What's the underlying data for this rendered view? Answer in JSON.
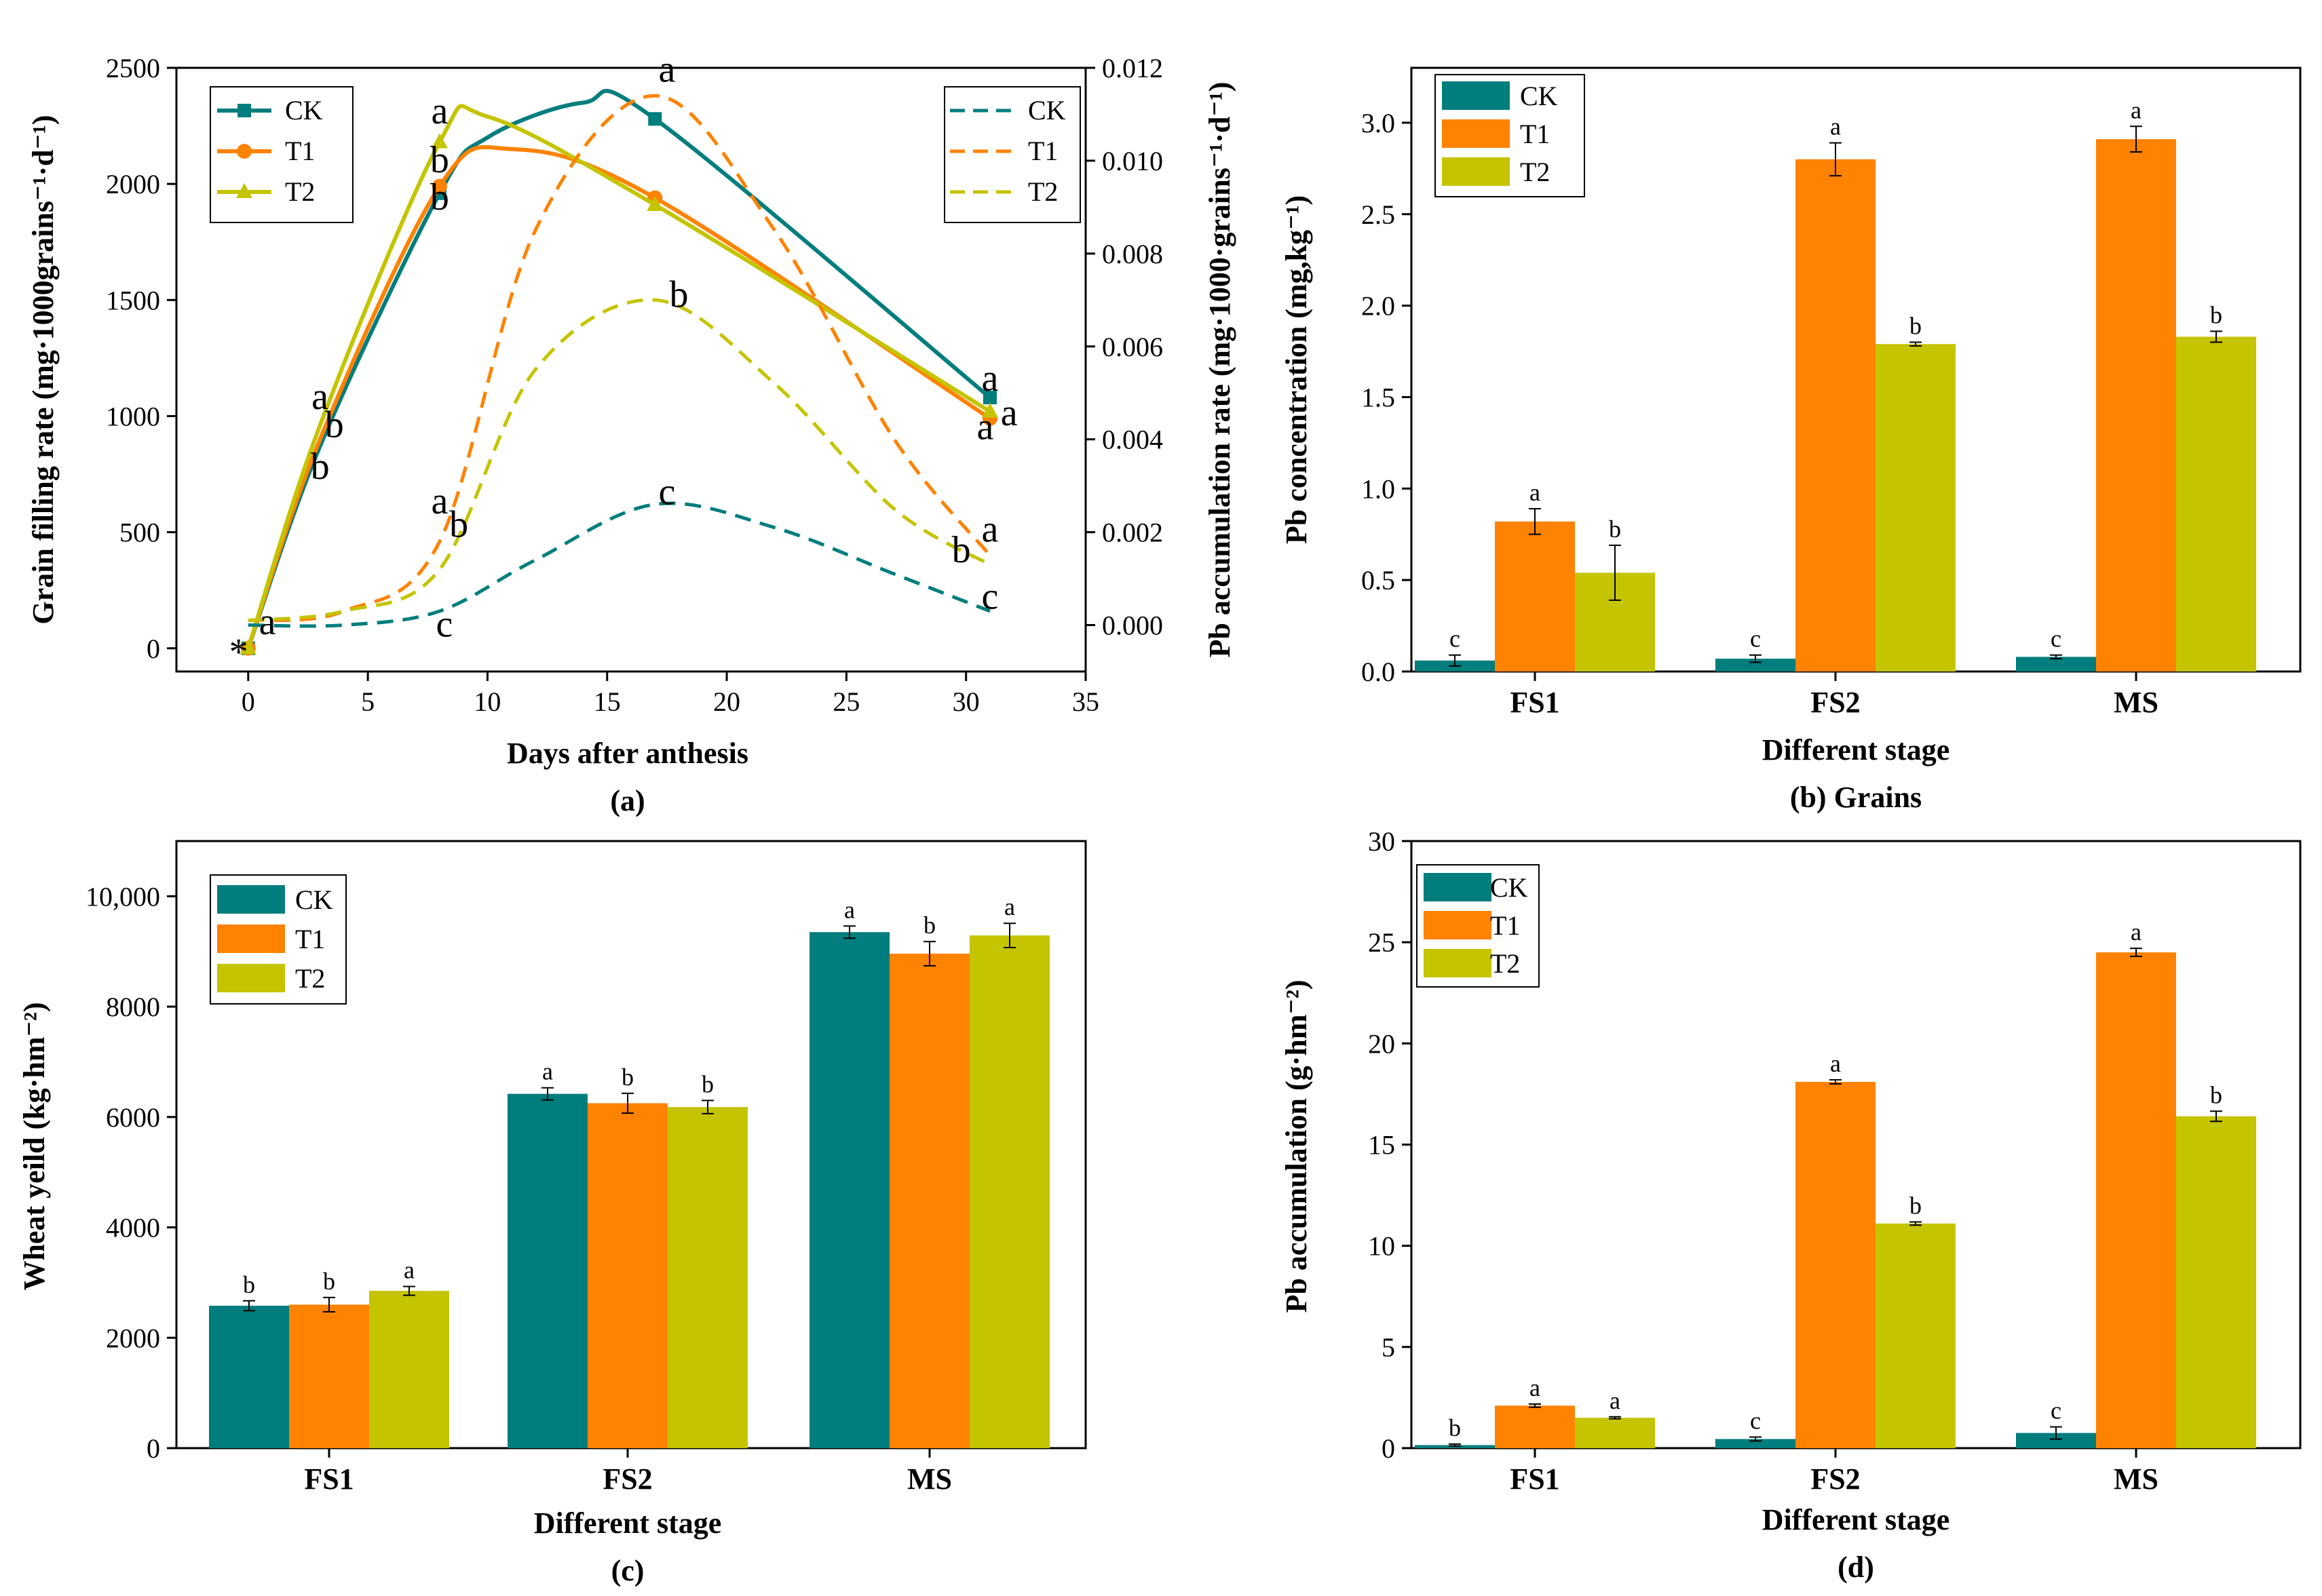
{
  "colors": {
    "CK": "#007d7d",
    "T1": "#ff8200",
    "T2": "#c4c400"
  },
  "chart_data": [
    {
      "id": "a",
      "type": "line",
      "caption": "(a)",
      "xlabel": "Days after anthesis",
      "ylabel": "Grain filling rate (mg·1000grains⁻¹·d⁻¹)",
      "y2label": "Pb accumulation rate (mg·1000·grains⁻¹·d⁻¹)",
      "xlim": [
        -3,
        35
      ],
      "xticks": [
        "0",
        "5",
        "10",
        "15",
        "20",
        "25",
        "30",
        "35"
      ],
      "ylim": [
        -100,
        2500
      ],
      "yticks": [
        "0",
        "500",
        "1000",
        "1500",
        "2000",
        "2500"
      ],
      "y2lim": [
        -0.001,
        0.012
      ],
      "y2ticks": [
        "0.000",
        "0.002",
        "0.004",
        "0.006",
        "0.008",
        "0.010",
        "0.012"
      ],
      "legend_left": [
        "CK",
        "T1",
        "T2"
      ],
      "legend_right": [
        "CK",
        "T1",
        "T2"
      ],
      "grain_series": [
        {
          "name": "CK",
          "x": [
            0,
            3,
            8,
            10,
            14,
            17,
            31
          ],
          "y": [
            0,
            870,
            1960,
            2200,
            2350,
            2280,
            1080
          ],
          "marker_x": [
            0,
            8,
            17,
            31
          ],
          "marker_y": [
            0,
            1960,
            2280,
            1080
          ]
        },
        {
          "name": "T1",
          "x": [
            0,
            3,
            8,
            11,
            17,
            31
          ],
          "y": [
            0,
            900,
            1990,
            2150,
            1940,
            990
          ],
          "marker_x": [
            0,
            8,
            17,
            31
          ],
          "marker_y": [
            0,
            1990,
            1940,
            990
          ]
        },
        {
          "name": "T2",
          "x": [
            0,
            3,
            8,
            10,
            17,
            31
          ],
          "y": [
            0,
            960,
            2180,
            2290,
            1910,
            1020
          ],
          "marker_x": [
            0,
            8,
            17,
            31
          ],
          "marker_y": [
            0,
            2180,
            1910,
            1020
          ]
        }
      ],
      "pb_series": [
        {
          "name": "CK",
          "x": [
            0,
            4,
            8,
            12,
            17,
            22,
            27,
            31
          ],
          "y": [
            0.0,
            0.0,
            0.0003,
            0.0014,
            0.0026,
            0.0021,
            0.0011,
            0.0003
          ]
        },
        {
          "name": "T1",
          "x": [
            0,
            4,
            8,
            12,
            17,
            22,
            27,
            31
          ],
          "y": [
            0.0001,
            0.0003,
            0.0018,
            0.0085,
            0.0114,
            0.0085,
            0.004,
            0.0015
          ]
        },
        {
          "name": "T2",
          "x": [
            0,
            4,
            8,
            12,
            17,
            22,
            27,
            31
          ],
          "y": [
            0.0001,
            0.0003,
            0.0012,
            0.0055,
            0.007,
            0.0052,
            0.0025,
            0.0013
          ]
        }
      ],
      "labels": [
        {
          "text": "a",
          "x": 8,
          "y": 2260
        },
        {
          "text": "b",
          "x": 8,
          "y": 2050
        },
        {
          "text": "b",
          "x": 8,
          "y": 1890
        },
        {
          "text": "a",
          "x": 3,
          "y": 1030
        },
        {
          "text": "b",
          "x": 3.6,
          "y": 910
        },
        {
          "text": "b",
          "x": 3,
          "y": 730
        },
        {
          "text": "a",
          "x": 17.5,
          "y": 2440
        },
        {
          "text": "b",
          "x": 18,
          "y": 1470
        },
        {
          "text": "c",
          "x": 17.5,
          "y": 620
        },
        {
          "text": "a",
          "x": 8,
          "y": 580
        },
        {
          "text": "b",
          "x": 8.8,
          "y": 480
        },
        {
          "text": "c",
          "x": 8.2,
          "y": 50
        },
        {
          "text": "a",
          "x": 31,
          "y": 1110
        },
        {
          "text": "a",
          "x": 30.8,
          "y": 900
        },
        {
          "text": "a",
          "x": 31.8,
          "y": 960
        },
        {
          "text": "a",
          "x": 31,
          "y": 460
        },
        {
          "text": "b",
          "x": 29.8,
          "y": 370
        },
        {
          "text": "c",
          "x": 31,
          "y": 170
        },
        {
          "text": "a",
          "x": 0.8,
          "y": 60
        },
        {
          "text": "*",
          "x": -0.4,
          "y": -70
        }
      ]
    },
    {
      "id": "b",
      "type": "bar",
      "caption": "(b) Grains",
      "xlabel": "Different stage",
      "ylabel": "Pb concentration (mg,kg⁻¹)",
      "categories": [
        "FS1",
        "FS2",
        "MS"
      ],
      "ylim": [
        0,
        3.3
      ],
      "yticks": [
        "0.0",
        "0.5",
        "1.0",
        "1.5",
        "2.0",
        "2.5",
        "3.0"
      ],
      "series": [
        {
          "name": "CK",
          "values": [
            0.06,
            0.07,
            0.08
          ],
          "errors": [
            0.03,
            0.02,
            0.01
          ],
          "sig": [
            "c",
            "c",
            "c"
          ]
        },
        {
          "name": "T1",
          "values": [
            0.82,
            2.8,
            2.91
          ],
          "errors": [
            0.07,
            0.09,
            0.07
          ],
          "sig": [
            "a",
            "a",
            "a"
          ]
        },
        {
          "name": "T2",
          "values": [
            0.54,
            1.79,
            1.83
          ],
          "errors": [
            0.15,
            0.01,
            0.03
          ],
          "sig": [
            "b",
            "b",
            "b"
          ]
        }
      ]
    },
    {
      "id": "c",
      "type": "bar",
      "caption": "(c)",
      "xlabel": "Different stage",
      "ylabel": "Wheat yeild (kg·hm⁻²)",
      "categories": [
        "FS1",
        "FS2",
        "MS"
      ],
      "ylim": [
        0,
        11000
      ],
      "yticks": [
        "0",
        "2000",
        "4000",
        "6000",
        "8000",
        "10,000"
      ],
      "series": [
        {
          "name": "CK",
          "values": [
            2580,
            6420,
            9350
          ],
          "errors": [
            90,
            110,
            110
          ],
          "sig": [
            "b",
            "a",
            "a"
          ]
        },
        {
          "name": "T1",
          "values": [
            2600,
            6250,
            8960
          ],
          "errors": [
            130,
            180,
            220
          ],
          "sig": [
            "b",
            "b",
            "b"
          ]
        },
        {
          "name": "T2",
          "values": [
            2850,
            6180,
            9290
          ],
          "errors": [
            80,
            120,
            220
          ],
          "sig": [
            "a",
            "b",
            "a"
          ]
        }
      ]
    },
    {
      "id": "d",
      "type": "bar",
      "caption": "(d)",
      "xlabel": "Different stage",
      "ylabel": "Pb accumulation (g·hm⁻²)",
      "categories": [
        "FS1",
        "FS2",
        "MS"
      ],
      "ylim": [
        0,
        30
      ],
      "yticks": [
        "0",
        "5",
        "10",
        "15",
        "20",
        "25",
        "30"
      ],
      "series": [
        {
          "name": "CK",
          "values": [
            0.15,
            0.45,
            0.75
          ],
          "errors": [
            0.05,
            0.1,
            0.3
          ],
          "sig": [
            "b",
            "c",
            "c"
          ]
        },
        {
          "name": "T1",
          "values": [
            2.1,
            18.1,
            24.5
          ],
          "errors": [
            0.08,
            0.1,
            0.2
          ],
          "sig": [
            "a",
            "a",
            "a"
          ]
        },
        {
          "name": "T2",
          "values": [
            1.5,
            11.1,
            16.4
          ],
          "errors": [
            0.05,
            0.08,
            0.25
          ],
          "sig": [
            "a",
            "b",
            "b"
          ]
        }
      ]
    }
  ]
}
